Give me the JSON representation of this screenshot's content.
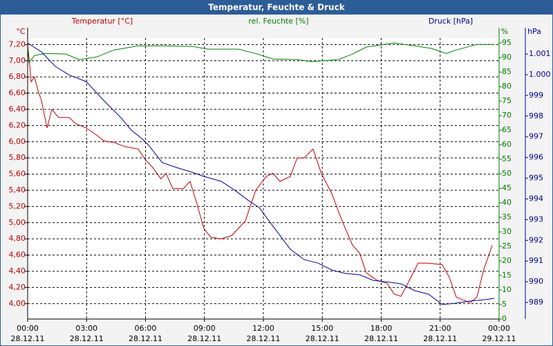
{
  "chart_data": {
    "type": "line",
    "title": "Temperatur, Feuchte & Druck",
    "y_label": "°C",
    "y2_label": "%",
    "y3_label": "hPa",
    "xlim": [
      0,
      24
    ],
    "xticks": [
      {
        "value": 0,
        "label": "00:00"
      },
      {
        "value": 3,
        "label": "03:00"
      },
      {
        "value": 6,
        "label": "06:00"
      },
      {
        "value": 9,
        "label": "09:00"
      },
      {
        "value": 12,
        "label": "12:00"
      },
      {
        "value": 15,
        "label": "15:00"
      },
      {
        "value": 18,
        "label": "18:00"
      },
      {
        "value": 21,
        "label": "21:00"
      },
      {
        "value": 24,
        "label": "00:00"
      }
    ],
    "xtick_dates": [
      "28.12.11",
      "28.12.11",
      "28.12.11",
      "28.12.11",
      "28.12.11",
      "28.12.11",
      "28.12.11",
      "28.12.11",
      "29.12.11"
    ],
    "ylim": [
      3.81,
      7.28
    ],
    "yticks": [
      {
        "value": 4,
        "label": "4,00"
      },
      {
        "value": 4.2,
        "label": "4,20"
      },
      {
        "value": 4.4,
        "label": "4,40"
      },
      {
        "value": 4.6,
        "label": "4,60"
      },
      {
        "value": 4.8,
        "label": "4,80"
      },
      {
        "value": 5,
        "label": "5,00"
      },
      {
        "value": 5.2,
        "label": "5,20"
      },
      {
        "value": 5.4,
        "label": "5,40"
      },
      {
        "value": 5.6,
        "label": "5,60"
      },
      {
        "value": 5.8,
        "label": "5,80"
      },
      {
        "value": 6,
        "label": "6,00"
      },
      {
        "value": 6.2,
        "label": "6,20"
      },
      {
        "value": 6.4,
        "label": "6,40"
      },
      {
        "value": 6.6,
        "label": "6,60"
      },
      {
        "value": 6.8,
        "label": "6,80"
      },
      {
        "value": 7,
        "label": "7,00"
      },
      {
        "value": 7.2,
        "label": "7,20"
      }
    ],
    "y2lim": [
      0,
      96.7
    ],
    "y2ticks": [
      0,
      5,
      10,
      15,
      20,
      25,
      30,
      35,
      40,
      45,
      50,
      55,
      60,
      65,
      70,
      75,
      80,
      85,
      90,
      95
    ],
    "y3lim": [
      988.2,
      1001.77
    ],
    "y3ticks": [
      989,
      990,
      991,
      992,
      993,
      994,
      995,
      996,
      997,
      998,
      999,
      {
        "value": 1000,
        "label": "1.000"
      },
      {
        "value": 1001,
        "label": "1.001"
      }
    ],
    "grid": true,
    "series": [
      {
        "name": "Temperatur [°C]",
        "color": "#c00000",
        "axis": "y",
        "x": [
          0,
          0.18,
          0.35,
          0.53,
          0.7,
          0.99,
          1.23,
          1.58,
          2.11,
          2.46,
          2.99,
          3.52,
          3.87,
          4.4,
          4.93,
          5.63,
          5.98,
          6.33,
          6.79,
          7.04,
          7.39,
          7.92,
          8.27,
          8.62,
          8.97,
          9.32,
          9.85,
          10.38,
          11.08,
          11.61,
          12.14,
          12.49,
          12.84,
          13.37,
          13.72,
          14.07,
          14.53,
          14.95,
          15.48,
          16.01,
          16.54,
          16.89,
          17.24,
          17.77,
          18.3,
          18.65,
          19,
          19.35,
          19.88,
          20.41,
          21.11,
          21.46,
          21.82,
          22.52,
          22.87,
          23.22,
          23.65
        ],
        "values": [
          7.22,
          6.74,
          6.8,
          6.63,
          6.51,
          6.17,
          6.4,
          6.3,
          6.3,
          6.22,
          6.17,
          6.08,
          6.01,
          5.99,
          5.94,
          5.91,
          5.78,
          5.69,
          5.54,
          5.61,
          5.42,
          5.42,
          5.51,
          5.23,
          4.93,
          4.82,
          4.8,
          4.84,
          5.02,
          5.4,
          5.57,
          5.61,
          5.51,
          5.57,
          5.8,
          5.8,
          5.91,
          5.61,
          5.36,
          5.02,
          4.72,
          4.63,
          4.38,
          4.29,
          4.25,
          4.12,
          4.09,
          4.25,
          4.5,
          4.5,
          4.48,
          4.33,
          4.08,
          4.01,
          4.08,
          4.42,
          4.72
        ]
      },
      {
        "name": "rel. Feuchte [%]",
        "color": "#008000",
        "axis": "y2",
        "x": [
          0,
          0.07,
          0.35,
          0.88,
          1.94,
          2.64,
          3.52,
          4.4,
          5.63,
          7.04,
          8.44,
          9.15,
          10.73,
          11.61,
          12.49,
          13.72,
          14.43,
          15.83,
          16.54,
          17.24,
          18.65,
          19.7,
          20.58,
          21.29,
          21.82,
          22.87,
          23.75
        ],
        "values": [
          93.6,
          88.3,
          90.7,
          91.4,
          91.2,
          89.3,
          90.2,
          92.6,
          94,
          94,
          93.8,
          92.9,
          92.9,
          91.4,
          89.5,
          89.3,
          88.6,
          89.3,
          91.2,
          93.6,
          95,
          94,
          93.1,
          91.4,
          92.6,
          94.5,
          94.5
        ]
      },
      {
        "name": "Druck [hPa]",
        "color": "#000090",
        "axis": "y3",
        "x": [
          0,
          0.7,
          1.41,
          2.11,
          2.99,
          3.87,
          4.75,
          5.28,
          5.81,
          6.16,
          6.86,
          7.57,
          8.27,
          8.97,
          9.85,
          10.56,
          11.26,
          11.79,
          12.31,
          12.84,
          13.37,
          14.07,
          14.78,
          15.48,
          16.19,
          16.89,
          17.59,
          18.47,
          19,
          19.7,
          20.41,
          21.11,
          21.82,
          22.52,
          23.22,
          23.75
        ],
        "values": [
          1001.53,
          1001.1,
          1000.4,
          999.99,
          999.66,
          998.76,
          997.92,
          997.32,
          996.92,
          996.59,
          995.75,
          995.52,
          995.32,
          995.09,
          994.85,
          994.41,
          993.91,
          993.58,
          992.91,
          992.24,
          991.57,
          991.07,
          990.9,
          990.57,
          990.4,
          990.34,
          990.07,
          989.97,
          989.9,
          989.57,
          989.4,
          988.9,
          988.97,
          989.07,
          989.13,
          989.2
        ]
      }
    ]
  }
}
